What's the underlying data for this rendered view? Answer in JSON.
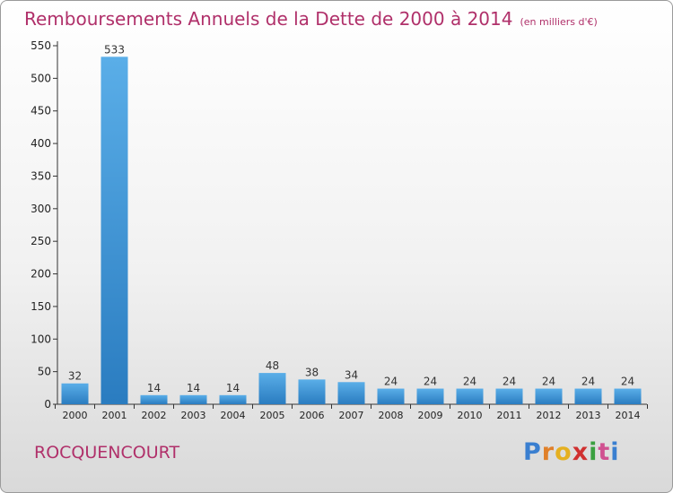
{
  "title": "Remboursements Annuels de la Dette de 2000 à 2014",
  "title_unit": "(en milliers d'€)",
  "commune": "ROCQUENCOURT",
  "logo": {
    "text": "Proxiti"
  },
  "colors": {
    "title": "#b0306a",
    "bar_light": "#5aaee8",
    "bar_dark": "#2a7cc0",
    "logo_letters": [
      "#3a7fd0",
      "#e0802a",
      "#e5b020",
      "#d03030",
      "#3aa040",
      "#d05090",
      "#3a7fd0"
    ]
  },
  "chart_data": {
    "type": "bar",
    "title": "Remboursements Annuels de la Dette de 2000 à 2014",
    "categories": [
      "2000",
      "2001",
      "2002",
      "2003",
      "2004",
      "2005",
      "2006",
      "2007",
      "2008",
      "2009",
      "2010",
      "2011",
      "2012",
      "2013",
      "2014"
    ],
    "values": [
      32,
      533,
      14,
      14,
      14,
      48,
      38,
      34,
      24,
      24,
      24,
      24,
      24,
      24,
      24
    ],
    "ylim": [
      0,
      550
    ],
    "yticks": [
      0,
      50,
      100,
      150,
      200,
      250,
      300,
      350,
      400,
      450,
      500,
      550
    ],
    "grid": false,
    "data_labels": true
  }
}
